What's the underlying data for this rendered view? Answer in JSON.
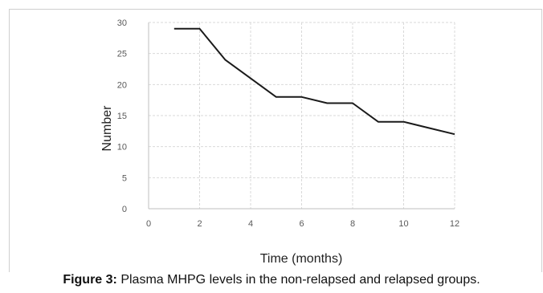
{
  "chart_data": {
    "type": "line",
    "xlabel": "Time (months)",
    "ylabel": "Number",
    "xlim": [
      0,
      12
    ],
    "ylim": [
      0,
      30
    ],
    "x_ticks": [
      0,
      2,
      4,
      6,
      8,
      10,
      12
    ],
    "y_ticks": [
      0,
      5,
      10,
      15,
      20,
      25,
      30
    ],
    "grid": true,
    "grid_style": "dashed",
    "line_color": "#1a1a1a",
    "series": [
      {
        "x": [
          1,
          2,
          3,
          4,
          5,
          6,
          7,
          8,
          9,
          10,
          11,
          12
        ],
        "values": [
          29,
          29,
          24,
          21,
          18,
          18,
          17,
          17,
          14,
          14,
          13,
          12
        ]
      }
    ]
  },
  "caption": {
    "label": "Figure 3:",
    "text": " Plasma MHPG levels in the non-relapsed and relapsed groups."
  }
}
